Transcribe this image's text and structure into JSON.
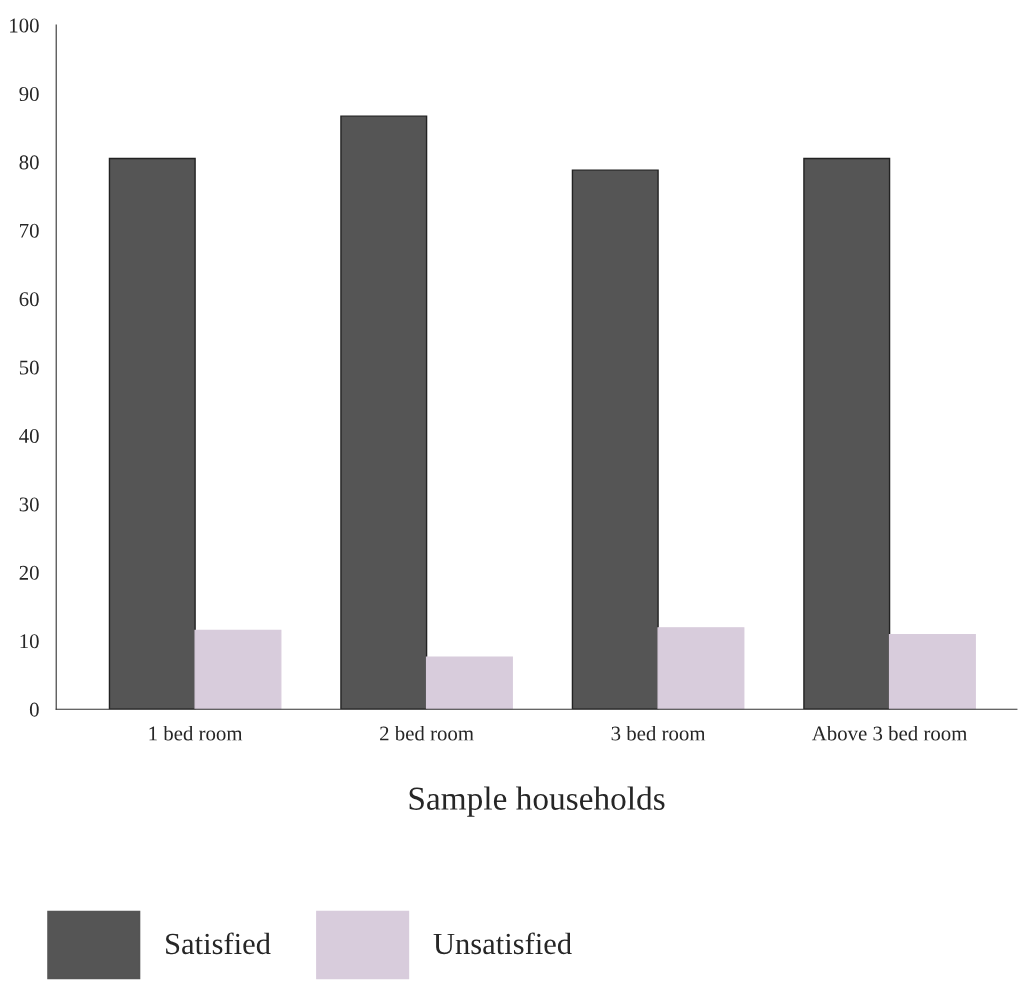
{
  "chart_data": {
    "type": "bar",
    "xlabel": "Sample households",
    "categories": [
      "1 bed room",
      "2 bed room",
      "3 bed room",
      "Above 3 bed room"
    ],
    "series": [
      {
        "name": "Satisfied",
        "color": "#555555",
        "values": [
          80.5,
          86.7,
          78.8,
          80.5
        ]
      },
      {
        "name": "Unsatisfied",
        "color": "#d8ccdc",
        "values": [
          11.5,
          7.6,
          11.9,
          10.9
        ]
      }
    ],
    "ylim": [
      0,
      100
    ],
    "yticks": [
      0,
      10,
      20,
      30,
      40,
      50,
      60,
      70,
      80,
      90,
      100
    ],
    "grid": false,
    "legend": "bottom left"
  }
}
